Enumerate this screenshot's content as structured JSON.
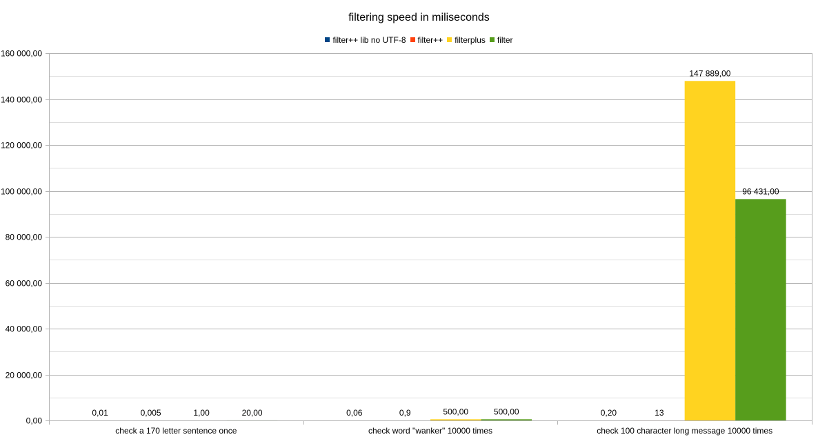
{
  "chart_data": {
    "type": "bar",
    "title": "filtering speed in miliseconds",
    "categories": [
      "check a 170 letter sentence once",
      "check word \"wanker\" 10000 times",
      "check 100 character long message 10000 times"
    ],
    "series": [
      {
        "name": "filter++ lib no UTF-8",
        "color": "#004586",
        "values": [
          0.01,
          0.06,
          0.2
        ],
        "labels": [
          "0,01",
          "0,06",
          "0,20"
        ]
      },
      {
        "name": "filter++",
        "color": "#ff420e",
        "values": [
          0.005,
          0.9,
          13
        ],
        "labels": [
          "0,005",
          "0,9",
          "13"
        ]
      },
      {
        "name": "filterplus",
        "color": "#ffd320",
        "values": [
          1,
          500,
          147889
        ],
        "labels": [
          "1,00",
          "500,00",
          "147 889,00"
        ]
      },
      {
        "name": "filter",
        "color": "#579d1c",
        "values": [
          20,
          500,
          96431
        ],
        "labels": [
          "20,00",
          "500,00",
          "96 431,00"
        ]
      }
    ],
    "ylim": [
      0,
      160000
    ],
    "yticks": [
      0,
      20000,
      40000,
      60000,
      80000,
      100000,
      120000,
      140000,
      160000
    ],
    "ytick_labels": [
      "0,00",
      "20 000,00",
      "40 000,00",
      "60 000,00",
      "80 000,00",
      "100 000,00",
      "120 000,00",
      "140 000,00",
      "160 000,00"
    ],
    "xlabel": "",
    "ylabel": "",
    "grid": true,
    "legend_position": "top"
  }
}
